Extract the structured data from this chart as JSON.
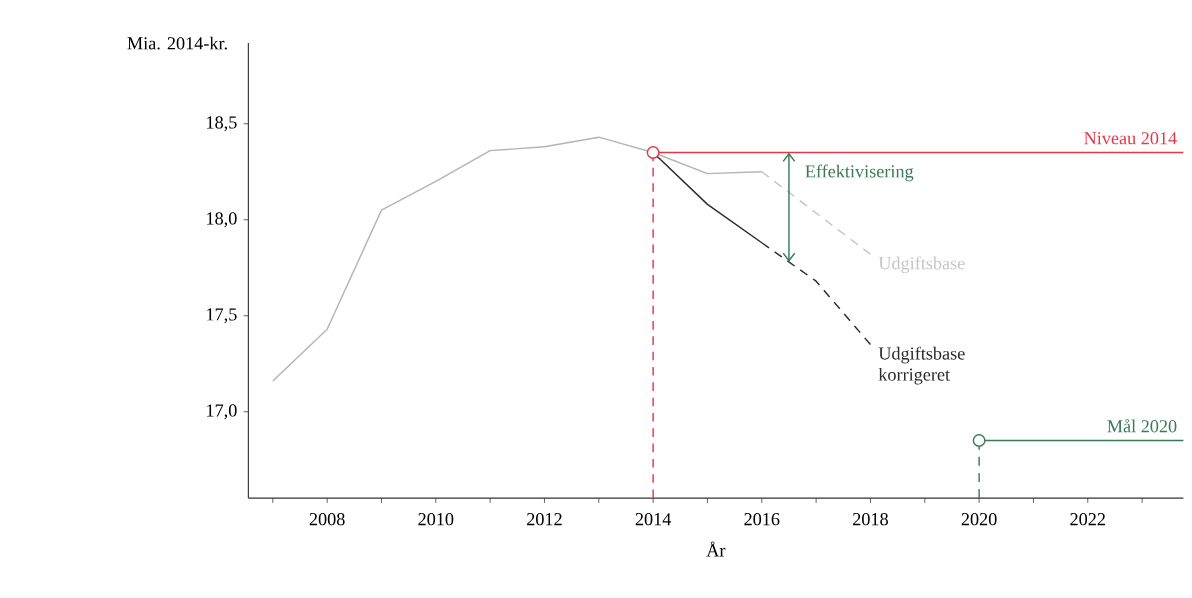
{
  "chart_data": {
    "type": "line",
    "xlabel": "År",
    "ylabel": "Mia. 2014-kr.",
    "annotations": [
      {
        "text": "Effektivisering",
        "x": 2016.5,
        "y": 18.35
      }
    ],
    "xlim": [
      2006.55,
      2023.76
    ],
    "ylim": [
      16.55,
      18.92
    ],
    "xticks": [
      {
        "value": 2007,
        "label": null
      },
      2008,
      {
        "value": 2009,
        "label": null
      },
      2010,
      {
        "value": 2011,
        "label": null
      },
      2012,
      {
        "value": 2013,
        "label": null
      },
      2014,
      {
        "value": 2015,
        "label": null
      },
      2016,
      {
        "value": 2017,
        "label": null
      },
      2018,
      {
        "value": 2019,
        "label": null
      },
      2020,
      {
        "value": 2021,
        "label": null
      },
      2022,
      {
        "value": 2023,
        "label": null
      }
    ],
    "yticks": [
      {
        "value": 17.0,
        "label": "17,0"
      },
      {
        "value": 17.5,
        "label": "17,5"
      },
      {
        "value": 18.0,
        "label": "18,0"
      },
      {
        "value": 18.5,
        "label": "18,5"
      }
    ],
    "series": [
      {
        "color": "#b4b4b4",
        "line_style": "solid",
        "x": [
          2007,
          2008,
          2009,
          2010,
          2011,
          2012,
          2013,
          2014,
          2015,
          2016
        ],
        "values": [
          17.16,
          17.43,
          18.05,
          18.2,
          18.36,
          18.38,
          18.43,
          18.35,
          18.24,
          18.25
        ]
      },
      {
        "name": "Udgiftsbase",
        "color": "#c4c4c4",
        "line_style": "dashed",
        "x": [
          2016,
          2018
        ],
        "values": [
          18.25,
          17.82
        ]
      },
      {
        "color": "#2a2a2a",
        "line_style": "solid",
        "x": [
          2014,
          2015,
          2016
        ],
        "values": [
          18.35,
          18.08,
          17.88
        ]
      },
      {
        "name": "Udgiftsbase korrigeret",
        "color": "#2a2a2a",
        "line_style": "dashed",
        "x": [
          2016,
          2017,
          2018
        ],
        "values": [
          17.88,
          17.68,
          17.35
        ]
      },
      {
        "name": "Niveau 2014",
        "color": "#e2384a",
        "line_style": "solid",
        "x": [
          2014,
          2023.76
        ],
        "values": [
          18.35,
          18.35
        ]
      },
      {
        "color": "#e2384a",
        "line_style": "dashed",
        "x": [
          2014,
          2014
        ],
        "values": [
          16.55,
          18.35
        ]
      },
      {
        "name": "Mål 2020",
        "color": "#3a7a55",
        "line_style": "solid",
        "x": [
          2020,
          2023.76
        ],
        "values": [
          16.85,
          16.85
        ]
      },
      {
        "color": "#3a7a55",
        "line_style": "dashed",
        "x": [
          2020,
          2020
        ],
        "values": [
          16.55,
          16.85
        ]
      },
      {
        "type": "scatter",
        "marker": "circle",
        "color": "#e2384a",
        "x": [
          2014
        ],
        "values": [
          18.35
        ]
      },
      {
        "type": "scatter",
        "marker": "circle",
        "color": "#3a7a55",
        "x": [
          2020
        ],
        "values": [
          16.85
        ]
      }
    ]
  }
}
